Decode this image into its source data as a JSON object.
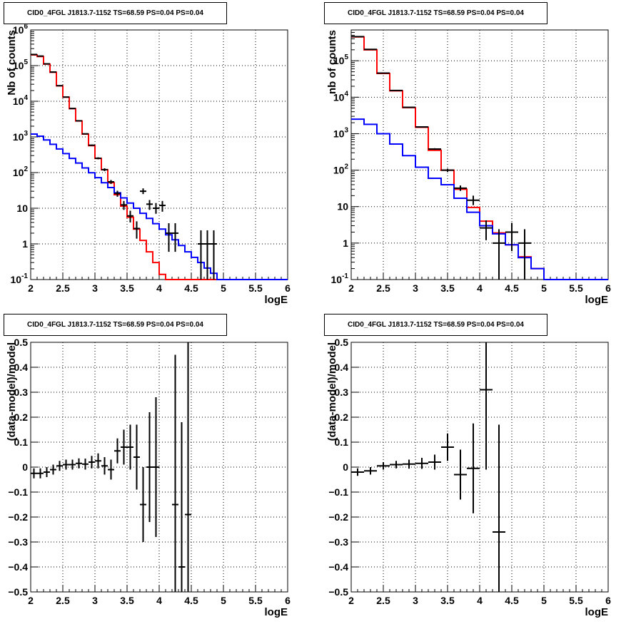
{
  "pads": [
    {
      "title": "CID0_4FGL J1813.7-1152 TS=68.59 PS=0.04 PS=0.04",
      "xlabel": "logE",
      "ylabel": "Nb of counts",
      "type": "log",
      "xticks": [
        "2",
        "2.5",
        "3",
        "3.5",
        "4",
        "4.5",
        "5",
        "5.5",
        "6"
      ],
      "yticks": [
        "10^{-1}",
        "1",
        "10",
        "10^{2}",
        "10^{3}",
        "10^{4}",
        "10^{5}",
        "10^{6}"
      ]
    },
    {
      "title": "CID0_4FGL J1813.7-1152 TS=68.59 PS=0.04 PS=0.04",
      "xlabel": "logE",
      "ylabel": "nb of counts",
      "type": "log",
      "xticks": [
        "2",
        "2.5",
        "3",
        "3.5",
        "4",
        "4.5",
        "5",
        "5.5",
        "6"
      ],
      "yticks": [
        "10^{-1}",
        "1",
        "10",
        "10^{2}",
        "10^{3}",
        "10^{4}",
        "10^{5}"
      ]
    },
    {
      "title": "CID0_4FGL J1813.7-1152 TS=68.59 PS=0.04 PS=0.04",
      "xlabel": "logE",
      "ylabel": "(data-model)/model",
      "type": "linear",
      "xticks": [
        "2",
        "2.5",
        "3",
        "3.5",
        "4",
        "4.5",
        "5",
        "5.5",
        "6"
      ],
      "yticks": [
        "−0.5",
        "−0.4",
        "−0.3",
        "−0.2",
        "−0.1",
        "0",
        "0.1",
        "0.2",
        "0.3",
        "0.4",
        "0.5"
      ]
    },
    {
      "title": "CID0_4FGL J1813.7-1152 TS=68.59 PS=0.04 PS=0.04",
      "xlabel": "logE",
      "ylabel": "(data-model)/model",
      "type": "linear",
      "xticks": [
        "2",
        "2.5",
        "3",
        "3.5",
        "4",
        "4.5",
        "5",
        "5.5",
        "6"
      ],
      "yticks": [
        "−0.5",
        "−0.4",
        "−0.3",
        "−0.2",
        "−0.1",
        "0",
        "0.1",
        "0.2",
        "0.3",
        "0.4",
        "0.5"
      ]
    }
  ],
  "chart_data": [
    {
      "type": "line",
      "xlabel": "logE",
      "ylabel": "Nb of counts",
      "xlim": [
        2,
        6
      ],
      "ylim": [
        0.1,
        1000000
      ],
      "yscale": "log",
      "grid": true,
      "bin_edges": [
        2,
        2.1,
        2.2,
        2.3,
        2.4,
        2.5,
        2.6,
        2.7,
        2.8,
        2.9,
        3,
        3.1,
        3.2,
        3.3,
        3.4,
        3.5,
        3.6,
        3.7,
        3.8,
        3.9,
        4,
        4.1,
        4.2,
        4.3,
        4.4,
        4.5,
        4.6,
        4.7,
        4.8,
        4.9,
        5,
        5.1,
        5.2,
        5.3,
        5.4,
        5.5,
        5.6,
        5.7,
        5.8,
        5.9,
        6
      ],
      "series": [
        {
          "color": "#ff0000",
          "values": [
            200000,
            180000,
            110000,
            65000,
            27000,
            13000,
            6200,
            2800,
            1200,
            570,
            250,
            120,
            52,
            24,
            11.5,
            5.6,
            2.6,
            1.25,
            0.6,
            0.3,
            0.14,
            0.1,
            0.1,
            0.1,
            0.1,
            0.1,
            0.1,
            0.1,
            0.1,
            0.1,
            0.1,
            0.1,
            0.1,
            0.1,
            0.1,
            0.1,
            0.1,
            0.1,
            0.1,
            0.1
          ]
        },
        {
          "color": "#0000ff",
          "values": [
            1200,
            1050,
            820,
            620,
            460,
            340,
            250,
            185,
            135,
            99,
            72,
            52,
            38,
            27,
            19.5,
            14,
            10,
            7.2,
            5.2,
            3.7,
            2.6,
            1.8,
            1.3,
            0.9,
            0.6,
            0.42,
            0.3,
            0.21,
            0.15,
            0.1,
            0.1,
            0.1,
            0.1,
            0.1,
            0.1,
            0.1,
            0.1,
            0.1,
            0.1,
            0.1
          ]
        }
      ],
      "points": [
        {
          "x": 2.05,
          "y": 205000,
          "ylo": 204000,
          "yhi": 206000
        },
        {
          "x": 2.15,
          "y": 185000,
          "ylo": 184000,
          "yhi": 186000
        },
        {
          "x": 2.25,
          "y": 112000,
          "ylo": 111000,
          "yhi": 113000
        },
        {
          "x": 2.35,
          "y": 66000,
          "ylo": 65500,
          "yhi": 66500
        },
        {
          "x": 2.45,
          "y": 27300,
          "ylo": 27000,
          "yhi": 27600
        },
        {
          "x": 2.55,
          "y": 13100,
          "ylo": 13000,
          "yhi": 13200
        },
        {
          "x": 2.65,
          "y": 6280,
          "ylo": 6200,
          "yhi": 6360
        },
        {
          "x": 2.75,
          "y": 2830,
          "ylo": 2780,
          "yhi": 2880
        },
        {
          "x": 2.85,
          "y": 1220,
          "ylo": 1190,
          "yhi": 1250
        },
        {
          "x": 2.95,
          "y": 585,
          "ylo": 560,
          "yhi": 610
        },
        {
          "x": 3.05,
          "y": 252,
          "ylo": 236,
          "yhi": 268
        },
        {
          "x": 3.15,
          "y": 121,
          "ylo": 110,
          "yhi": 132
        },
        {
          "x": 3.25,
          "y": 55,
          "ylo": 48,
          "yhi": 62
        },
        {
          "x": 3.35,
          "y": 26,
          "ylo": 21,
          "yhi": 31
        },
        {
          "x": 3.45,
          "y": 12.4,
          "ylo": 9,
          "yhi": 16
        },
        {
          "x": 3.55,
          "y": 6.1,
          "ylo": 4,
          "yhi": 8.5
        },
        {
          "x": 3.65,
          "y": 2.7,
          "ylo": 1.4,
          "yhi": 4.3
        },
        {
          "x": 3.75,
          "y": 30,
          "ylo": 25,
          "yhi": 36
        },
        {
          "x": 3.85,
          "y": 13,
          "ylo": 9,
          "yhi": 17
        },
        {
          "x": 3.95,
          "y": 10,
          "ylo": 7,
          "yhi": 14
        },
        {
          "x": 4.05,
          "y": 12,
          "ylo": 8,
          "yhi": 16
        },
        {
          "x": 4.15,
          "y": 2,
          "ylo": 0.6,
          "yhi": 3.8
        },
        {
          "x": 4.25,
          "y": 2,
          "ylo": 0.6,
          "yhi": 3.8
        },
        {
          "x": 4.65,
          "y": 1,
          "ylo": 0.1,
          "yhi": 2.4
        },
        {
          "x": 4.75,
          "y": 1,
          "ylo": 0.1,
          "yhi": 2.4
        },
        {
          "x": 4.85,
          "y": 1,
          "ylo": 0.1,
          "yhi": 2.4
        }
      ]
    },
    {
      "type": "line",
      "xlabel": "logE",
      "ylabel": "nb of counts",
      "xlim": [
        2,
        6
      ],
      "ylim": [
        0.1,
        700000
      ],
      "yscale": "log",
      "grid": true,
      "bin_edges": [
        2,
        2.2,
        2.4,
        2.6,
        2.8,
        3,
        3.2,
        3.4,
        3.6,
        3.8,
        4,
        4.2,
        4.4,
        4.6,
        4.8,
        5,
        5.2,
        5.4,
        5.6,
        5.8,
        6
      ],
      "series": [
        {
          "color": "#ff0000",
          "values": [
            450000,
            200000,
            45000,
            15000,
            5200,
            1500,
            350,
            100,
            30,
            9.5,
            4,
            1.9,
            0.9,
            0.42,
            0.2,
            0.1,
            0.1,
            0.1,
            0.1,
            0.1
          ]
        },
        {
          "color": "#0000ff",
          "values": [
            2500,
            1800,
            1000,
            520,
            250,
            120,
            60,
            40,
            17,
            7,
            3,
            1.8,
            0.9,
            0.4,
            0.2,
            0.1,
            0.1,
            0.1,
            0.1,
            0.1
          ]
        }
      ],
      "points": [
        {
          "x": 2.1,
          "y": 460000,
          "ylo": 458000,
          "yhi": 462000
        },
        {
          "x": 2.3,
          "y": 205000,
          "ylo": 204000,
          "yhi": 206000
        },
        {
          "x": 2.5,
          "y": 46000,
          "ylo": 45500,
          "yhi": 46500
        },
        {
          "x": 2.7,
          "y": 15300,
          "ylo": 15000,
          "yhi": 15600
        },
        {
          "x": 2.9,
          "y": 5300,
          "ylo": 5200,
          "yhi": 5400
        },
        {
          "x": 3.1,
          "y": 1530,
          "ylo": 1490,
          "yhi": 1570
        },
        {
          "x": 3.3,
          "y": 380,
          "ylo": 360,
          "yhi": 400
        },
        {
          "x": 3.5,
          "y": 100,
          "ylo": 90,
          "yhi": 110
        },
        {
          "x": 3.7,
          "y": 32,
          "ylo": 27,
          "yhi": 38
        },
        {
          "x": 3.9,
          "y": 15,
          "ylo": 11,
          "yhi": 20
        },
        {
          "x": 4.1,
          "y": 2.6,
          "ylo": 1.2,
          "yhi": 4.2
        },
        {
          "x": 4.3,
          "y": 1,
          "ylo": 0.1,
          "yhi": 2.4
        },
        {
          "x": 4.5,
          "y": 2,
          "ylo": 0.6,
          "yhi": 3.6
        },
        {
          "x": 4.7,
          "y": 1,
          "ylo": 0.1,
          "yhi": 2.4
        }
      ]
    },
    {
      "type": "scatter",
      "xlabel": "logE",
      "ylabel": "(data-model)/model",
      "xlim": [
        2,
        6
      ],
      "ylim": [
        -0.5,
        0.5
      ],
      "grid": true,
      "xerr": 0.05,
      "points": [
        {
          "x": 2.05,
          "y": -0.025,
          "err": 0.02
        },
        {
          "x": 2.15,
          "y": -0.025,
          "err": 0.02
        },
        {
          "x": 2.25,
          "y": -0.02,
          "err": 0.02
        },
        {
          "x": 2.35,
          "y": -0.01,
          "err": 0.02
        },
        {
          "x": 2.45,
          "y": 0.005,
          "err": 0.02
        },
        {
          "x": 2.55,
          "y": 0.01,
          "err": 0.02
        },
        {
          "x": 2.65,
          "y": 0.01,
          "err": 0.02
        },
        {
          "x": 2.75,
          "y": 0.015,
          "err": 0.02
        },
        {
          "x": 2.85,
          "y": 0.012,
          "err": 0.022
        },
        {
          "x": 2.95,
          "y": 0.02,
          "err": 0.025
        },
        {
          "x": 3.05,
          "y": 0.025,
          "err": 0.03
        },
        {
          "x": 3.15,
          "y": 0.005,
          "err": 0.035
        },
        {
          "x": 3.25,
          "y": -0.01,
          "err": 0.04
        },
        {
          "x": 3.35,
          "y": 0.065,
          "err": 0.05
        },
        {
          "x": 3.45,
          "y": 0.08,
          "err": 0.07
        },
        {
          "x": 3.55,
          "y": 0.08,
          "err": 0.09
        },
        {
          "x": 3.65,
          "y": 0.04,
          "err": 0.13
        },
        {
          "x": 3.75,
          "y": -0.15,
          "err": 0.15
        },
        {
          "x": 3.85,
          "y": 0,
          "err": 0.22
        },
        {
          "x": 3.95,
          "y": 0,
          "err": 0.28
        },
        {
          "x": 4.25,
          "y": -0.15,
          "err": 0.6
        },
        {
          "x": 4.35,
          "y": -0.4,
          "err": 0.58
        },
        {
          "x": 4.45,
          "y": -0.19,
          "err": 0.73
        }
      ]
    },
    {
      "type": "scatter",
      "xlabel": "logE",
      "ylabel": "(data-model)/model",
      "xlim": [
        2,
        6
      ],
      "ylim": [
        -0.5,
        0.5
      ],
      "grid": true,
      "xerr": 0.1,
      "points": [
        {
          "x": 2.1,
          "y": -0.02,
          "err": 0.015
        },
        {
          "x": 2.3,
          "y": -0.015,
          "err": 0.015
        },
        {
          "x": 2.5,
          "y": 0.005,
          "err": 0.015
        },
        {
          "x": 2.7,
          "y": 0.01,
          "err": 0.015
        },
        {
          "x": 2.9,
          "y": 0.012,
          "err": 0.018
        },
        {
          "x": 3.1,
          "y": 0.015,
          "err": 0.022
        },
        {
          "x": 3.3,
          "y": 0.02,
          "err": 0.03
        },
        {
          "x": 3.5,
          "y": 0.08,
          "err": 0.055
        },
        {
          "x": 3.7,
          "y": -0.03,
          "err": 0.1
        },
        {
          "x": 3.9,
          "y": -0.005,
          "err": 0.18
        },
        {
          "x": 4.1,
          "y": 0.31,
          "err": 0.32
        },
        {
          "x": 4.3,
          "y": -0.26,
          "err": 0.43
        }
      ]
    }
  ]
}
